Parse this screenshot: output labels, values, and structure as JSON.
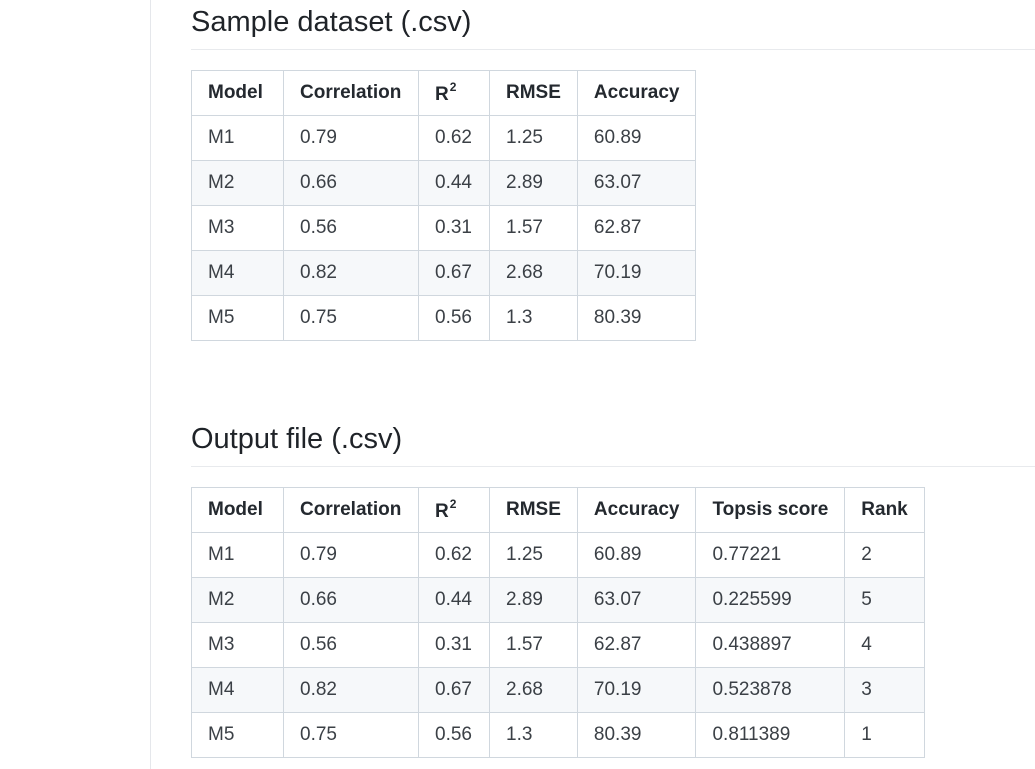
{
  "sample": {
    "title": "Sample dataset (.csv)",
    "headers": [
      "Model",
      "Correlation",
      "R",
      "2",
      "RMSE",
      "Accuracy"
    ],
    "rows": [
      [
        "M1",
        "0.79",
        "0.62",
        "1.25",
        "60.89"
      ],
      [
        "M2",
        "0.66",
        "0.44",
        "2.89",
        "63.07"
      ],
      [
        "M3",
        "0.56",
        "0.31",
        "1.57",
        "62.87"
      ],
      [
        "M4",
        "0.82",
        "0.67",
        "2.68",
        "70.19"
      ],
      [
        "M5",
        "0.75",
        "0.56",
        "1.3",
        "80.39"
      ]
    ]
  },
  "output": {
    "title": "Output file (.csv)",
    "headers": [
      "Model",
      "Correlation",
      "R",
      "2",
      "RMSE",
      "Accuracy",
      "Topsis score",
      "Rank"
    ],
    "rows": [
      [
        "M1",
        "0.79",
        "0.62",
        "1.25",
        "60.89",
        "0.77221",
        "2"
      ],
      [
        "M2",
        "0.66",
        "0.44",
        "2.89",
        "63.07",
        "0.225599",
        "5"
      ],
      [
        "M3",
        "0.56",
        "0.31",
        "1.57",
        "62.87",
        "0.438897",
        "4"
      ],
      [
        "M4",
        "0.82",
        "0.67",
        "2.68",
        "70.19",
        "0.523878",
        "3"
      ],
      [
        "M5",
        "0.75",
        "0.56",
        "1.3",
        "80.39",
        "0.811389",
        "1"
      ]
    ]
  }
}
